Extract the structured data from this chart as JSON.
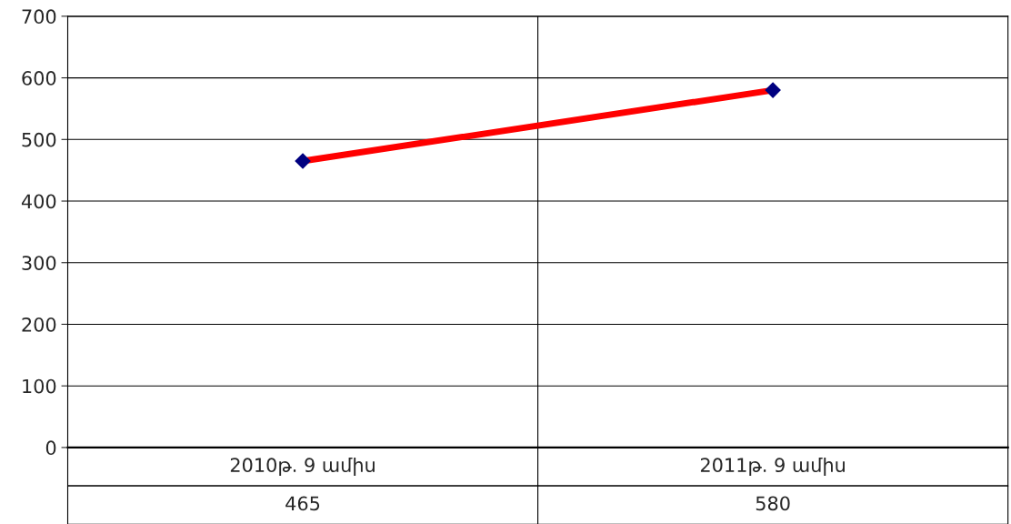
{
  "chart_data": {
    "type": "line",
    "categories": [
      "2010թ. 9 ամիս",
      "2011թ. 9 ամիս"
    ],
    "series": [
      {
        "color": "#ff0000",
        "values": [
          465,
          580
        ]
      }
    ],
    "ylim": [
      0,
      700
    ],
    "yticks": [
      0,
      100,
      200,
      300,
      400,
      500,
      600,
      700
    ],
    "grid": true,
    "marker": "diamond",
    "line_style": "solid",
    "data_labels": true,
    "legend": false
  }
}
